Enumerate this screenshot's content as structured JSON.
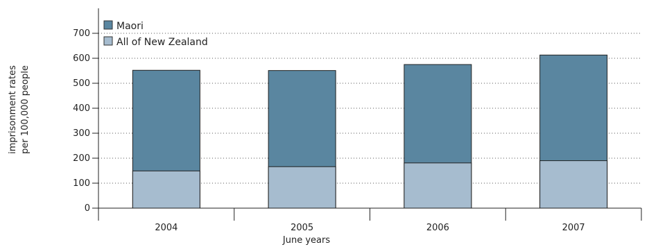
{
  "chart_data": {
    "type": "bar",
    "stacked": false,
    "overlapping": true,
    "categories": [
      "2004",
      "2005",
      "2006",
      "2007"
    ],
    "series": [
      {
        "name": "Maori",
        "values": [
          552,
          551,
          575,
          613
        ],
        "color": "#5a86a0"
      },
      {
        "name": "All of New Zealand",
        "values": [
          149,
          166,
          181,
          190
        ],
        "color": "#a6bccf"
      }
    ],
    "xlabel": "June years",
    "ylabel": [
      "imprisonment rates",
      "per 100,000 people"
    ],
    "yticks": [
      0,
      100,
      200,
      300,
      400,
      500,
      600,
      700
    ],
    "ylim": [
      0,
      700
    ],
    "grid": "horizontal dotted",
    "legend_position": "top-left"
  }
}
